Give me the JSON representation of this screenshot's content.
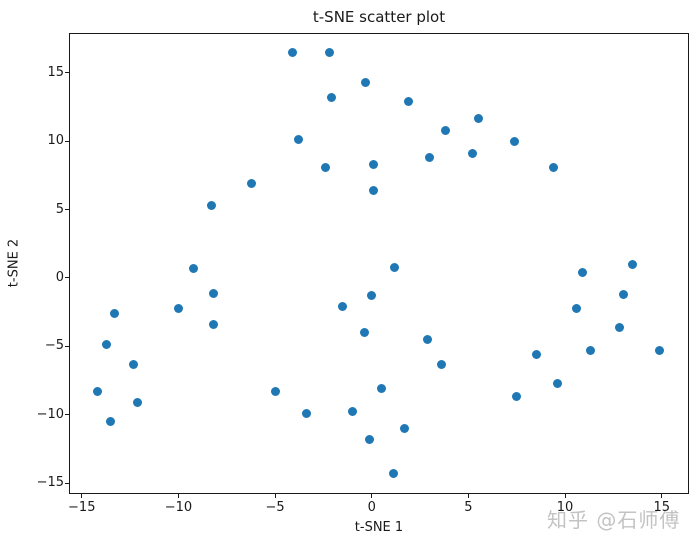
{
  "figure": {
    "background": "#ffffff",
    "spine_color": "#1a1a1a",
    "text_color": "#1a1a1a"
  },
  "chart_data": {
    "type": "scatter",
    "title": "t-SNE scatter plot",
    "xlabel": "t-SNE 1",
    "ylabel": "t-SNE 2",
    "xlim": [
      -15.66,
      16.41
    ],
    "ylim": [
      -15.8,
      17.92
    ],
    "xticks": [
      -15,
      -10,
      -5,
      0,
      5,
      10,
      15
    ],
    "xtick_labels": [
      "−15",
      "−10",
      "−5",
      "0",
      "5",
      "10",
      "15"
    ],
    "yticks": [
      -15,
      -10,
      -5,
      0,
      5,
      10,
      15
    ],
    "ytick_labels": [
      "−15",
      "−10",
      "−5",
      "0",
      "5",
      "10",
      "15"
    ],
    "grid": false,
    "marker": "circle",
    "marker_diameter_px": 9,
    "series": [
      {
        "name": "t-SNE points",
        "color": "#1f77b4",
        "points": [
          [
            -4.1,
            16.5
          ],
          [
            -2.2,
            16.5
          ],
          [
            -2.1,
            13.2
          ],
          [
            -3.8,
            10.1
          ],
          [
            -2.4,
            8.1
          ],
          [
            -6.2,
            6.9
          ],
          [
            -8.3,
            5.3
          ],
          [
            -9.2,
            0.7
          ],
          [
            -0.3,
            14.3
          ],
          [
            1.9,
            12.9
          ],
          [
            5.5,
            11.7
          ],
          [
            3.8,
            10.8
          ],
          [
            7.4,
            10.0
          ],
          [
            5.2,
            9.1
          ],
          [
            3.0,
            8.8
          ],
          [
            0.1,
            8.3
          ],
          [
            9.4,
            8.1
          ],
          [
            0.1,
            6.4
          ],
          [
            1.2,
            0.8
          ],
          [
            10.9,
            0.4
          ],
          [
            13.5,
            1.0
          ],
          [
            -13.3,
            -2.6
          ],
          [
            -13.7,
            -4.9
          ],
          [
            -12.3,
            -6.3
          ],
          [
            -14.2,
            -8.3
          ],
          [
            -12.1,
            -9.1
          ],
          [
            -13.5,
            -10.5
          ],
          [
            -10.0,
            -2.2
          ],
          [
            -8.2,
            -1.1
          ],
          [
            -8.2,
            -3.4
          ],
          [
            -5.0,
            -8.3
          ],
          [
            -3.4,
            -9.9
          ],
          [
            -1.5,
            -2.1
          ],
          [
            0.0,
            -1.3
          ],
          [
            -0.4,
            -4.0
          ],
          [
            2.9,
            -4.5
          ],
          [
            3.6,
            -6.3
          ],
          [
            0.5,
            -8.1
          ],
          [
            -1.0,
            -9.8
          ],
          [
            1.7,
            -11.0
          ],
          [
            -0.1,
            -11.8
          ],
          [
            1.1,
            -14.3
          ],
          [
            8.5,
            -5.6
          ],
          [
            9.6,
            -7.7
          ],
          [
            7.5,
            -8.7
          ],
          [
            10.6,
            -2.2
          ],
          [
            13.0,
            -1.2
          ],
          [
            12.8,
            -3.6
          ],
          [
            11.3,
            -5.3
          ],
          [
            14.9,
            -5.3
          ]
        ]
      }
    ]
  },
  "watermark": {
    "text": "知乎 @石师傅",
    "color": "#c3c3c3"
  }
}
